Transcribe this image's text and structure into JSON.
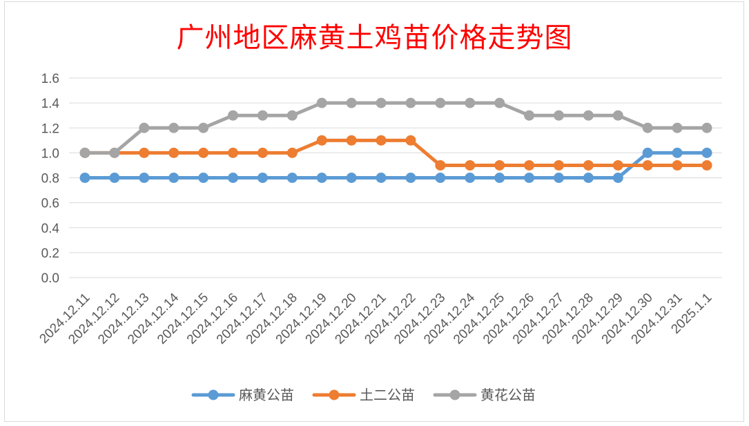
{
  "chart_data": {
    "type": "line",
    "title": "广州地区麻黄土鸡苗价格走势图",
    "xlabel": "",
    "ylabel": "",
    "ylim": [
      0,
      1.6
    ],
    "yticks": [
      "0.0",
      "0.2",
      "0.4",
      "0.6",
      "0.8",
      "1.0",
      "1.2",
      "1.4",
      "1.6"
    ],
    "grid": true,
    "legend_position": "bottom",
    "categories": [
      "2024.12.11",
      "2024.12.12",
      "2024.12.13",
      "2024.12.14",
      "2024.12.15",
      "2024.12.16",
      "2024.12.17",
      "2024.12.18",
      "2024.12.19",
      "2024.12.20",
      "2024.12.21",
      "2024.12.22",
      "2024.12.23",
      "2024.12.24",
      "2024.12.25",
      "2024.12.26",
      "2024.12.27",
      "2024.12.28",
      "2024.12.29",
      "2024.12.30",
      "2024.12.31",
      "2025.1.1"
    ],
    "series": [
      {
        "name": "麻黄公苗",
        "color": "#5b9bd5",
        "values": [
          0.8,
          0.8,
          0.8,
          0.8,
          0.8,
          0.8,
          0.8,
          0.8,
          0.8,
          0.8,
          0.8,
          0.8,
          0.8,
          0.8,
          0.8,
          0.8,
          0.8,
          0.8,
          0.8,
          1.0,
          1.0,
          1.0
        ]
      },
      {
        "name": "土二公苗",
        "color": "#ed7d31",
        "values": [
          1.0,
          1.0,
          1.0,
          1.0,
          1.0,
          1.0,
          1.0,
          1.0,
          1.1,
          1.1,
          1.1,
          1.1,
          0.9,
          0.9,
          0.9,
          0.9,
          0.9,
          0.9,
          0.9,
          0.9,
          0.9,
          0.9
        ]
      },
      {
        "name": "黄花公苗",
        "color": "#a5a5a5",
        "values": [
          1.0,
          1.0,
          1.2,
          1.2,
          1.2,
          1.3,
          1.3,
          1.3,
          1.4,
          1.4,
          1.4,
          1.4,
          1.4,
          1.4,
          1.4,
          1.3,
          1.3,
          1.3,
          1.3,
          1.2,
          1.2,
          1.2
        ]
      }
    ]
  }
}
